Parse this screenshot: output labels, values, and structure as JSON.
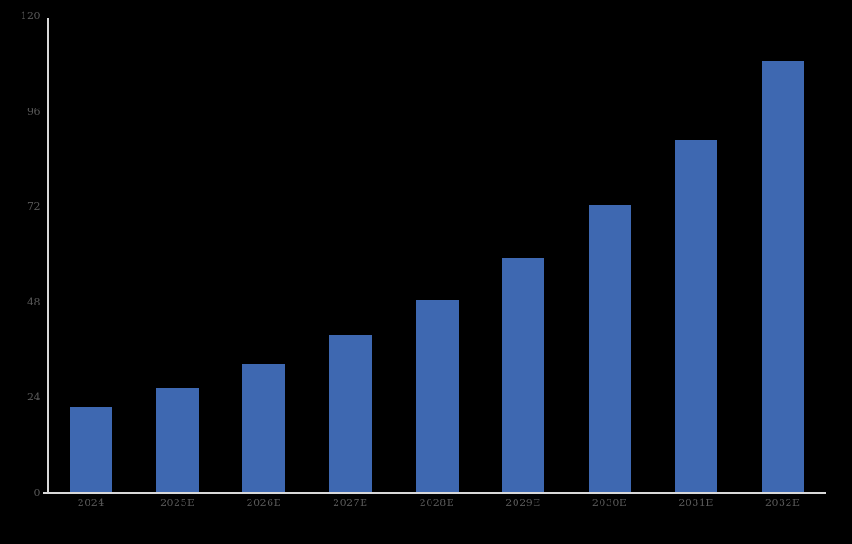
{
  "chart_data": {
    "type": "bar",
    "title": "",
    "xlabel": "",
    "ylabel": "",
    "categories": [
      "2024",
      "2025E",
      "2026E",
      "2027E",
      "2028E",
      "2029E",
      "2030E",
      "2031E",
      "2032E"
    ],
    "values": [
      21.6,
      26.4,
      32.3,
      39.5,
      48.4,
      59.1,
      72.3,
      88.6,
      108.4
    ],
    "ylim": [
      0,
      120
    ],
    "yticks": [
      0,
      24,
      48,
      72,
      96,
      120
    ],
    "grid": false,
    "legend": null,
    "colors": {
      "bar": "#3E68B1",
      "background": "#000000",
      "axis_line": "#D9D9D9",
      "tick_label": "#595959"
    }
  }
}
